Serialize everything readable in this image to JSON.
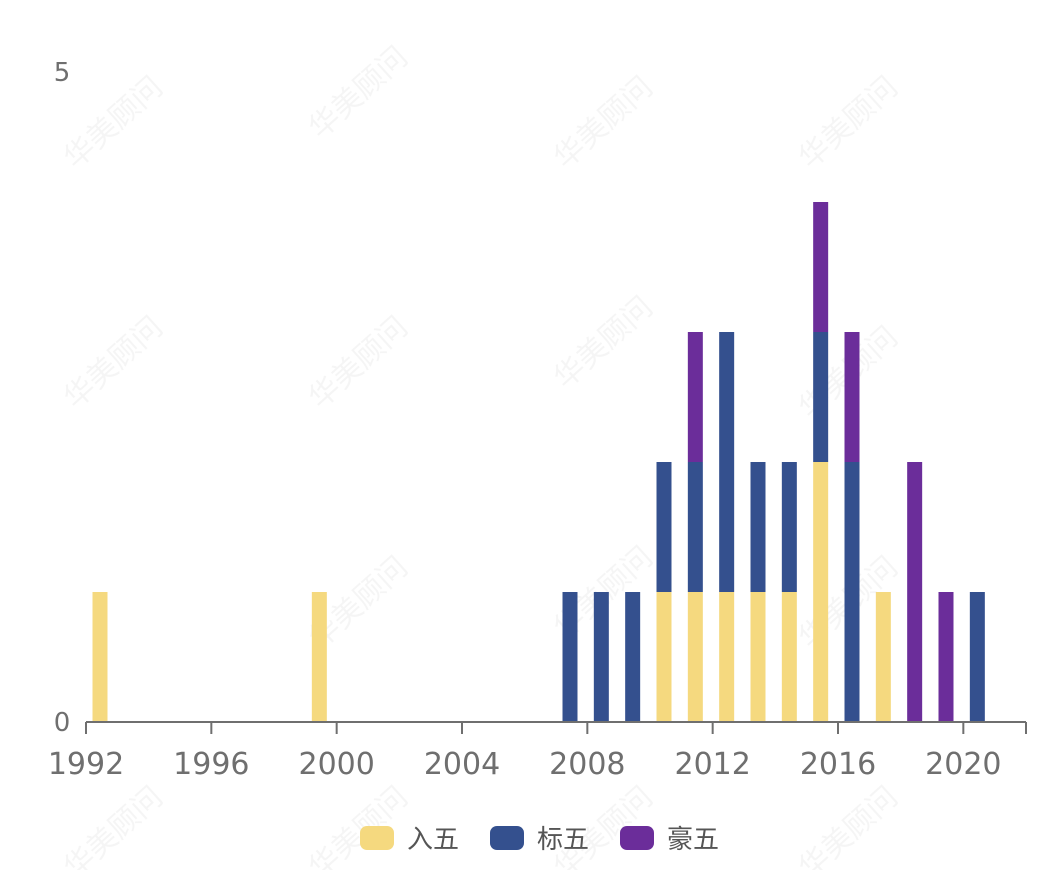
{
  "chart_data": {
    "type": "bar",
    "stacked": true,
    "x": [
      1992,
      1999,
      2007,
      2008,
      2009,
      2010,
      2011,
      2012,
      2013,
      2014,
      2015,
      2016,
      2017,
      2018,
      2019,
      2020
    ],
    "series": [
      {
        "name": "入五",
        "color": "#f5d97f",
        "values": [
          1,
          1,
          0,
          0,
          0,
          1,
          1,
          1,
          1,
          1,
          2,
          0,
          1,
          0,
          0,
          0
        ]
      },
      {
        "name": "标五",
        "color": "#34508e",
        "values": [
          0,
          0,
          1,
          1,
          1,
          1,
          1,
          2,
          1,
          1,
          1,
          2,
          0,
          0,
          0,
          1
        ]
      },
      {
        "name": "豪五",
        "color": "#6b2d9a",
        "values": [
          0,
          0,
          0,
          0,
          0,
          0,
          1,
          0,
          0,
          0,
          1,
          1,
          0,
          2,
          1,
          0
        ]
      }
    ],
    "xticks": [
      "1992",
      "1996",
      "2000",
      "2004",
      "2008",
      "2012",
      "2016",
      "2020"
    ],
    "yticks": [
      "0",
      "5"
    ],
    "xlim": [
      1992,
      2022
    ],
    "ylim": [
      0,
      5
    ],
    "grid": false,
    "legend": "bottom-center",
    "watermark": "华美顾问"
  }
}
